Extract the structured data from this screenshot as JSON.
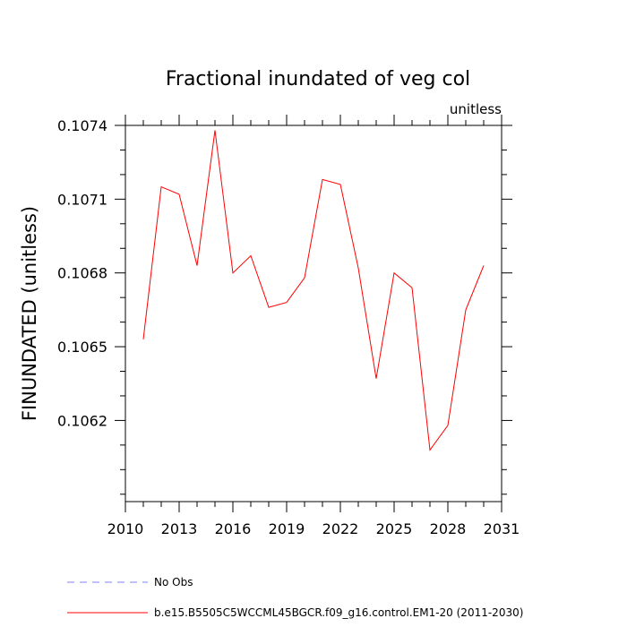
{
  "chart_data": {
    "type": "line",
    "title": "Fractional inundated of veg col",
    "units": "unitless",
    "ylabel": "FINUNDATED  (unitless)",
    "xlabel": "",
    "xlim": [
      2010,
      2031
    ],
    "ylim": [
      0.10587,
      0.1074
    ],
    "xticks": [
      2010,
      2013,
      2016,
      2019,
      2022,
      2025,
      2028,
      2031
    ],
    "xtick_labels": [
      "2010",
      "2013",
      "2016",
      "2019",
      "2022",
      "2025",
      "2028",
      "2031"
    ],
    "yticks": [
      0.1062,
      0.1065,
      0.1068,
      0.1071,
      0.1074
    ],
    "ytick_labels": [
      "0.1062",
      "0.1065",
      "0.1068",
      "0.1071",
      "0.1074"
    ],
    "series": [
      {
        "name": "b.e15.B5505C5WCCML45BGCR.f09_g16.control.EM1-20 (2011-2030)",
        "color": "#ff0000",
        "x": [
          2011,
          2012,
          2013,
          2014,
          2015,
          2016,
          2017,
          2018,
          2019,
          2020,
          2021,
          2022,
          2023,
          2024,
          2025,
          2026,
          2027,
          2028,
          2029,
          2030
        ],
        "values": [
          0.10653,
          0.10715,
          0.10712,
          0.10683,
          0.10738,
          0.1068,
          0.10687,
          0.10666,
          0.10668,
          0.10678,
          0.10718,
          0.10716,
          0.10682,
          0.10637,
          0.1068,
          0.10674,
          0.10608,
          0.10618,
          0.10665,
          0.10683
        ]
      }
    ],
    "legend": [
      {
        "label": "No Obs",
        "color": "#8080ff",
        "style": "dashed"
      },
      {
        "label": "b.e15.B5505C5WCCML45BGCR.f09_g16.control.EM1-20 (2011-2030)",
        "color": "#ff0000",
        "style": "solid"
      }
    ]
  }
}
